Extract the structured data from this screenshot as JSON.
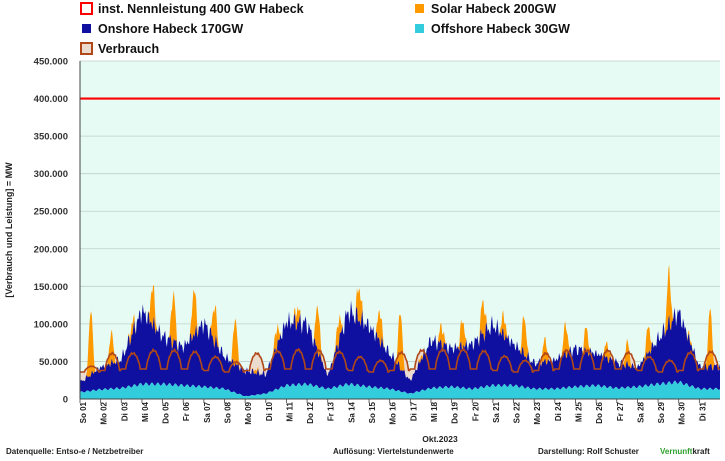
{
  "chart_data": {
    "type": "area",
    "ylabel": "[Verbrauch und Leistung] =  MW",
    "xlabel": "Okt.2023",
    "ylim": [
      0,
      450000
    ],
    "yticks": [
      "0",
      "50.000",
      "100.000",
      "150.000",
      "200.000",
      "250.000",
      "300.000",
      "350.000",
      "400.000",
      "450.000"
    ],
    "grid": true,
    "legend_position": "top",
    "days": [
      "So 01",
      "Mo 02",
      "Di 03",
      "Mi 04",
      "Do 05",
      "Fr 06",
      "Sa 07",
      "So 08",
      "Mo 09",
      "Di 10",
      "Mi 11",
      "Do 12",
      "Fr 13",
      "Sa 14",
      "So 15",
      "Mo 16",
      "Di 17",
      "Mi 18",
      "Do 19",
      "Fr 20",
      "Sa 21",
      "So 22",
      "Mo 23",
      "Di 24",
      "Mi 25",
      "Do 26",
      "Fr 27",
      "Sa 28",
      "So 29",
      "Mo 30",
      "Di 31"
    ],
    "capacity_line": {
      "name": "inst. Nennleistung 400 GW Habeck",
      "value": 400000,
      "color": "#ff0000"
    },
    "series": [
      {
        "name": "Offshore Habeck 30GW",
        "color": "#33ccdd",
        "daily_mean": [
          10000,
          14000,
          16000,
          22000,
          22000,
          20000,
          18000,
          15000,
          4000,
          8000,
          20000,
          22000,
          15000,
          22000,
          18000,
          15000,
          8000,
          16000,
          18000,
          15000,
          20000,
          20000,
          15000,
          15000,
          18000,
          20000,
          16000,
          18000,
          22000,
          25000,
          15000
        ]
      },
      {
        "name": "Onshore Habeck 170GW",
        "color": "#1010a0",
        "daily_peak": [
          15000,
          35000,
          45000,
          115000,
          75000,
          60000,
          100000,
          50000,
          40000,
          30000,
          100000,
          95000,
          20000,
          115000,
          95000,
          55000,
          20000,
          75000,
          60000,
          70000,
          95000,
          65000,
          40000,
          45000,
          60000,
          50000,
          40000,
          30000,
          70000,
          110000,
          35000
        ]
      },
      {
        "name": "Solar Habeck 200GW",
        "color": "#ff9900",
        "daily_peak": [
          100000,
          75000,
          60000,
          165000,
          140000,
          120000,
          148000,
          110000,
          45000,
          55000,
          120000,
          155000,
          50000,
          158000,
          135000,
          130000,
          25000,
          100000,
          95000,
          115000,
          120000,
          115000,
          70000,
          85000,
          90000,
          70000,
          70000,
          65000,
          138000,
          115000,
          110000
        ]
      },
      {
        "name": "Verbrauch",
        "color": "#b04818",
        "fill": "#ecdcd0",
        "daily_peak": [
          44000,
          62000,
          62000,
          66000,
          66000,
          64000,
          57000,
          50000,
          62000,
          65000,
          67000,
          66000,
          64000,
          57000,
          52000,
          63000,
          66000,
          67000,
          67000,
          65000,
          58000,
          52000,
          62000,
          66000,
          66000,
          66000,
          63000,
          57000,
          52000,
          63000,
          64000
        ],
        "daily_trough": [
          36000,
          38000,
          40000,
          40000,
          40000,
          40000,
          38000,
          36000,
          38000,
          40000,
          40000,
          40000,
          40000,
          38000,
          36000,
          38000,
          40000,
          40000,
          40000,
          40000,
          38000,
          36000,
          38000,
          40000,
          40000,
          40000,
          40000,
          38000,
          36000,
          38000,
          40000
        ]
      }
    ]
  },
  "footer": {
    "source": "Datenquelle: Entso-e  / Netzbetreiber",
    "resolution": "Auflösung: Viertelstundenwerte",
    "author": "Darstellung:  Rolf Schuster",
    "brand_a": "Vernunft",
    "brand_b": "kraft"
  }
}
